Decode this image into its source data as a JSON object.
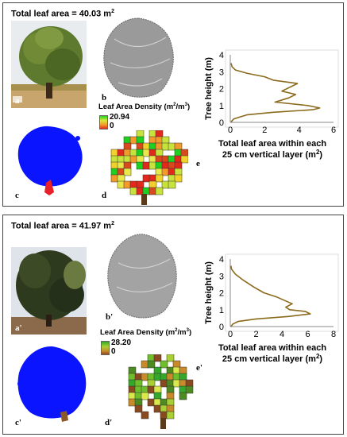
{
  "panel1": {
    "title": "Total leaf area = 40.03 m",
    "title_sup": "2",
    "labels": {
      "a": "a",
      "b": "b",
      "c": "c",
      "d": "d",
      "e": "e"
    },
    "legend": {
      "title": "Leaf Area Density (m",
      "sup1": "2",
      "mid": "/m",
      "sup2": "3",
      "end": ")",
      "max": "20.94",
      "min": "0"
    }
  },
  "panel2": {
    "title": "Total leaf area = 41.97 m",
    "title_sup": "2",
    "labels": {
      "a": "a'",
      "b": "b'",
      "c": "c'",
      "d": "d'",
      "e": "e'"
    },
    "legend": {
      "title": "Leaf Area Density (m",
      "sup1": "2",
      "mid": "/m",
      "sup2": "3",
      "end": ")",
      "max": "28.20",
      "min": "0"
    }
  },
  "colors": {
    "curve": "#8b6a1c",
    "point_cloud": "#0a14ff",
    "trunk": "#e8202a"
  },
  "chart_data": [
    {
      "type": "line",
      "ylabel": "Tree height (m)",
      "xlabel_line1": "Total leaf area within each",
      "xlabel_line2": "25 cm vertical layer (m",
      "xlabel_sup": "2",
      "xlabel_end": ")",
      "xlim": [
        0,
        6
      ],
      "ylim": [
        0,
        4
      ],
      "xticks": [
        "0",
        "2",
        "4",
        "6"
      ],
      "yticks": [
        "0",
        "1",
        "2",
        "3",
        "4"
      ],
      "series": [
        {
          "x": [
            0.05,
            0.1,
            0.2,
            0.5,
            1.0,
            2.5,
            4.8,
            5.2,
            4.5,
            2.6,
            3.4,
            3.8,
            3.0,
            3.9,
            2.5,
            2.0,
            1.0,
            0.3,
            0.1,
            0.05
          ],
          "y": [
            0.0,
            0.1,
            0.2,
            0.3,
            0.45,
            0.6,
            0.75,
            0.85,
            1.0,
            1.2,
            1.45,
            1.65,
            1.85,
            2.3,
            2.5,
            2.7,
            2.9,
            3.1,
            3.3,
            3.5
          ]
        }
      ]
    },
    {
      "type": "line",
      "ylabel": "Tree height (m)",
      "xlabel_line1": "Total leaf area within each",
      "xlabel_line2": "25 cm vertical layer (m",
      "xlabel_sup": "2",
      "xlabel_end": ")",
      "xlim": [
        0,
        8
      ],
      "ylim": [
        0,
        4
      ],
      "xticks": [
        "0",
        "2",
        "4",
        "6",
        "8"
      ],
      "yticks": [
        "0",
        "1",
        "2",
        "3",
        "4"
      ],
      "series": [
        {
          "x": [
            0.05,
            0.2,
            0.6,
            2.0,
            4.5,
            6.2,
            5.8,
            4.6,
            4.3,
            4.8,
            3.6,
            2.6,
            1.8,
            1.0,
            0.4,
            0.1,
            0.05
          ],
          "y": [
            0.0,
            0.15,
            0.3,
            0.45,
            0.6,
            0.75,
            0.9,
            1.0,
            1.15,
            1.35,
            1.75,
            2.0,
            2.35,
            2.75,
            3.1,
            3.4,
            3.6
          ]
        }
      ]
    }
  ]
}
